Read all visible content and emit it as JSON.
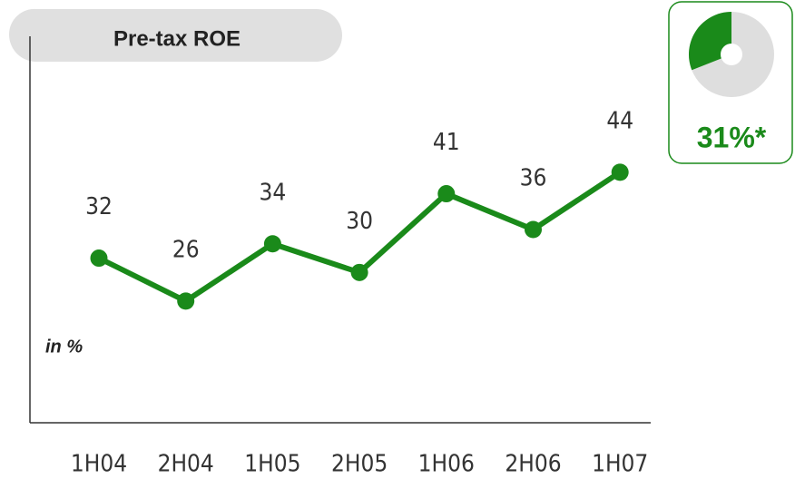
{
  "chart_data": {
    "type": "line",
    "title": "Pre-tax ROE",
    "axis_note": "in %",
    "categories": [
      "1H04",
      "2H04",
      "1H05",
      "2H05",
      "1H06",
      "2H06",
      "1H07"
    ],
    "values": [
      32,
      26,
      34,
      30,
      41,
      36,
      44
    ],
    "color": "#1a8a1a",
    "ylim": [
      9,
      63
    ],
    "badge": {
      "value": 31,
      "label": "31%*",
      "color": "#1a8a1a"
    }
  }
}
